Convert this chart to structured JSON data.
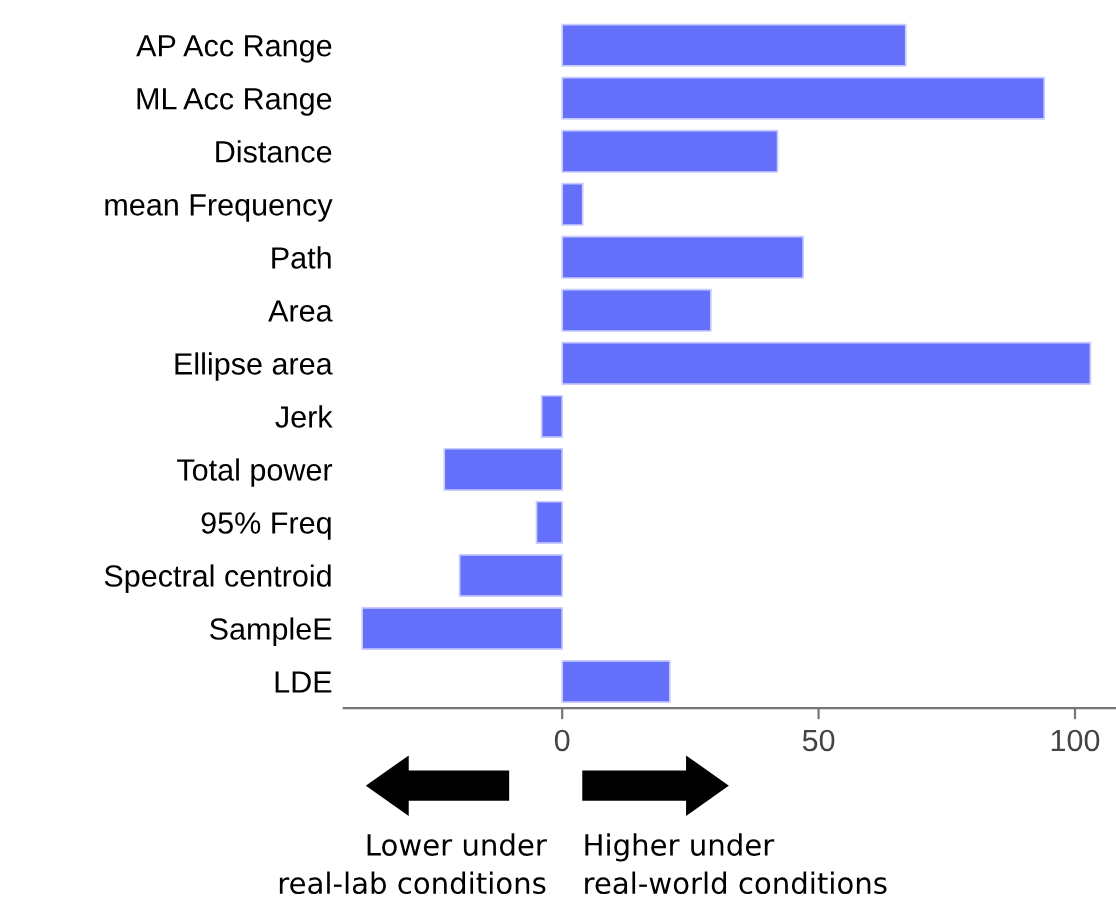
{
  "chart_data": {
    "type": "bar",
    "orientation": "horizontal",
    "categories": [
      "AP Acc Range",
      "ML Acc Range",
      "Distance",
      "mean Frequency",
      "Path",
      "Area",
      "Ellipse area",
      "Jerk",
      "Total power",
      "95% Freq",
      "Spectral centroid",
      "SampleE",
      "LDE"
    ],
    "values": [
      67,
      94,
      42,
      4,
      47,
      29,
      103,
      -4,
      -23,
      -5,
      -20,
      -39,
      21
    ],
    "color": "#6470fa",
    "xlim": [
      -42.6,
      108
    ],
    "xticks": [
      0,
      50,
      100
    ],
    "grid": false,
    "legend": false,
    "annotations": [
      "Lower under\nreal-lab conditions",
      "Higher under\nreal-world conditions"
    ]
  }
}
